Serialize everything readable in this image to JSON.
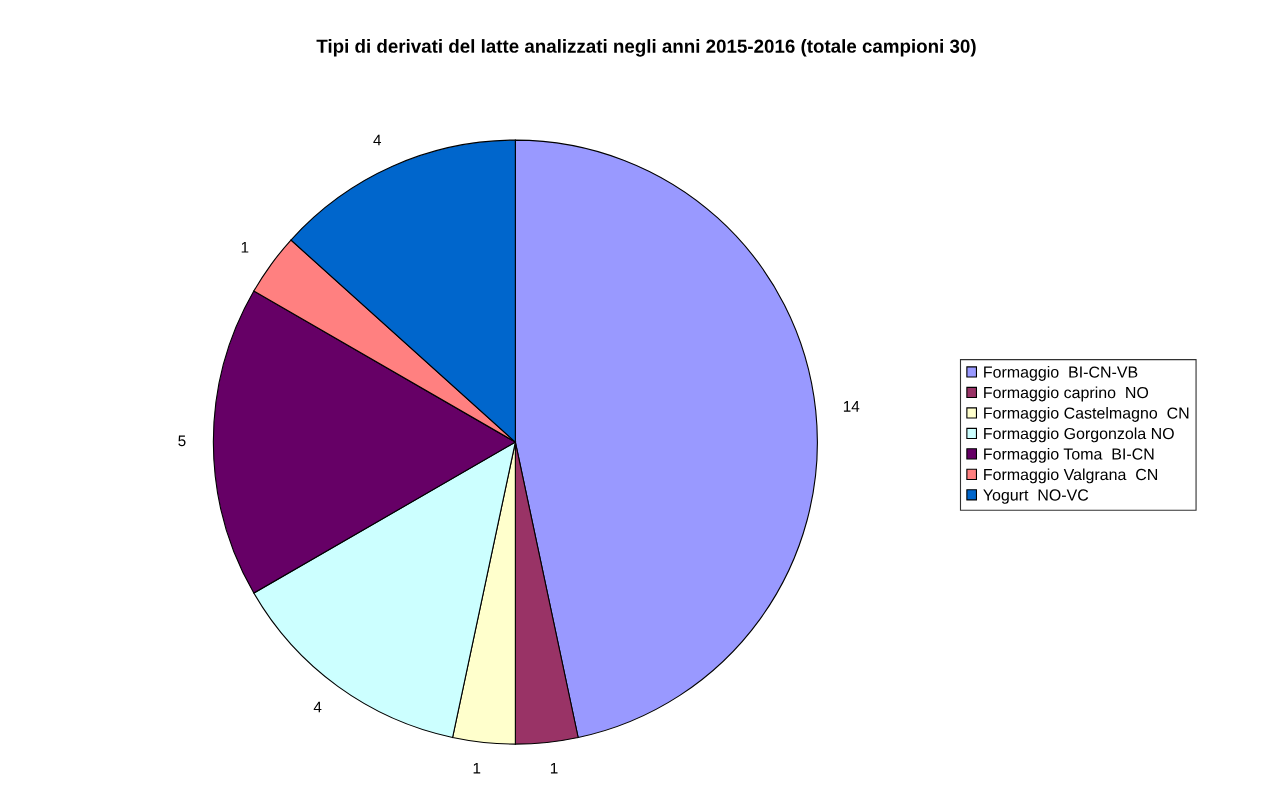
{
  "chart_data": {
    "type": "pie",
    "title": "Tipi di derivati del latte analizzati negli anni 2015-2016 (totale campioni 30)",
    "categories": [
      "Formaggio  BI-CN-VB",
      "Formaggio caprino  NO",
      "Formaggio Castelmagno  CN",
      "Formaggio Gorgonzola NO",
      "Formaggio Toma  BI-CN",
      "Formaggio Valgrana  CN",
      "Yogurt  NO-VC"
    ],
    "values": [
      14,
      1,
      1,
      4,
      5,
      1,
      4
    ],
    "colors": [
      "#9999ff",
      "#993366",
      "#ffffcc",
      "#ccffff",
      "#660066",
      "#ff8080",
      "#0066cc"
    ],
    "data_labels": true,
    "legend": "right"
  }
}
